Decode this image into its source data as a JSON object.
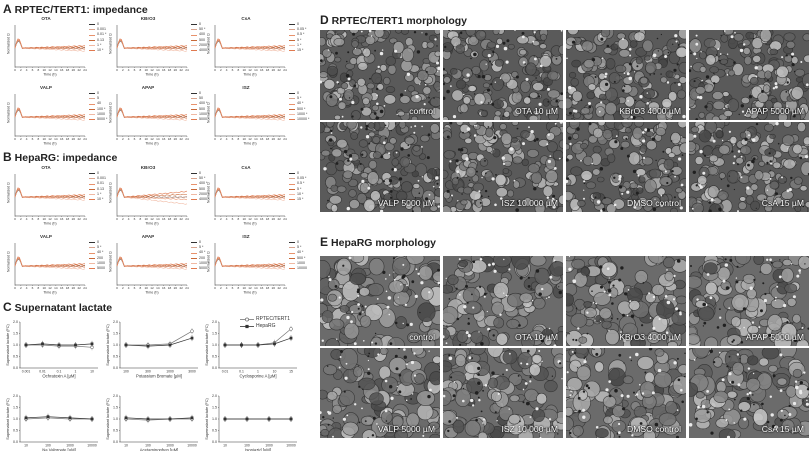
{
  "panels": {
    "a": {
      "letter": "A",
      "title": "RPTEC/TERT1: impedance"
    },
    "b": {
      "letter": "B",
      "title": "HepaRG: impedance"
    },
    "c": {
      "letter": "C",
      "title": "Supernatant lactate"
    },
    "d": {
      "letter": "D",
      "title": "RPTEC/TERT1 morphology"
    },
    "e": {
      "letter": "E",
      "title": "HepaRG morphology"
    }
  },
  "impedance_axes": {
    "ylabel": "Normalized Ω",
    "xlabel": "Time (h)",
    "xticks": [
      "0",
      "2",
      "4",
      "6",
      "8",
      "10",
      "12",
      "14",
      "16",
      "18",
      "20",
      "22",
      "24"
    ]
  },
  "impedance_rptec": [
    {
      "title": "OTA",
      "legend": [
        "0",
        "0.001",
        "0.01 *",
        "0.13",
        "1 *",
        "10 *"
      ]
    },
    {
      "title": "KBrO3",
      "legend": [
        "0",
        "50 *",
        "400",
        "500",
        "2000 *",
        "4000 *"
      ]
    },
    {
      "title": "CsA",
      "legend": [
        "0",
        "0.05 *",
        "0.5 *",
        "5 *",
        "1 *",
        "15 *"
      ]
    },
    {
      "title": "VALP",
      "legend": [
        "0",
        "5",
        "40",
        "100 *",
        "1000",
        "5000 *"
      ]
    },
    {
      "title": "APAP",
      "legend": [
        "0",
        "50",
        "400 *",
        "500",
        "1000 *",
        "5000 *"
      ]
    },
    {
      "title": "ISZ",
      "legend": [
        "0",
        "5 *",
        "40 *",
        "500 *",
        "1000 *",
        "10000 *"
      ]
    }
  ],
  "impedance_heparg": [
    {
      "title": "OTA",
      "legend": [
        "0",
        "0.001",
        "0.01",
        "0.13",
        "1 *",
        "10 *"
      ]
    },
    {
      "title": "KBrO3",
      "legend": [
        "0",
        "50 *",
        "400 *",
        "500",
        "2000 *",
        "4000 *"
      ]
    },
    {
      "title": "CsA",
      "legend": [
        "0",
        "0.05 *",
        "0.5 *",
        "5 *",
        "10 *",
        "15 *"
      ]
    },
    {
      "title": "VALP",
      "legend": [
        "0",
        "5 *",
        "40 *",
        "200",
        "1000",
        "5000"
      ]
    },
    {
      "title": "APAP",
      "legend": [
        "0",
        "5 *",
        "40 *",
        "200",
        "1000 *",
        "5000"
      ]
    },
    {
      "title": "ISZ",
      "legend": [
        "0",
        "5 *",
        "40 *",
        "500 *",
        "1000",
        "10000"
      ]
    }
  ],
  "lactate_legend": [
    "RPTEC/TERT1",
    "HepaRG"
  ],
  "lactate_ylabel": "Supernatant lactate (FC)",
  "lactate_yticks": [
    "0.0",
    "0.5",
    "1.0",
    "1.5",
    "2.0"
  ],
  "chart_data": [
    {
      "type": "line",
      "title": "",
      "xlabel": "Ochratoxin A [µM]",
      "ylabel": "Supernatant lactate (FC)",
      "x": [
        "0.001",
        "0.01",
        "0.1",
        "1",
        "10"
      ],
      "ylim": [
        0,
        2.0
      ],
      "series": [
        {
          "name": "RPTEC/TERT1",
          "values": [
            1.0,
            1.0,
            0.95,
            0.95,
            0.9
          ]
        },
        {
          "name": "HepaRG",
          "values": [
            1.0,
            1.05,
            1.0,
            1.0,
            1.05
          ]
        }
      ]
    },
    {
      "type": "line",
      "title": "",
      "xlabel": "Potassium Bromate [µM]",
      "ylabel": "Supernatant lactate (FC)",
      "x": [
        "100",
        "300",
        "1000",
        "3000"
      ],
      "ylim": [
        0,
        2.0
      ],
      "series": [
        {
          "name": "RPTEC/TERT1",
          "values": [
            1.0,
            1.0,
            1.05,
            1.6
          ]
        },
        {
          "name": "HepaRG",
          "values": [
            1.0,
            0.95,
            1.0,
            1.3
          ]
        }
      ]
    },
    {
      "type": "line",
      "title": "",
      "xlabel": "Cyclosporine A [µM]",
      "ylabel": "Supernatant lactate (FC)",
      "x": [
        "0.01",
        "0.1",
        "1",
        "10",
        "15"
      ],
      "ylim": [
        0,
        2.0
      ],
      "series": [
        {
          "name": "RPTEC/TERT1",
          "values": [
            1.0,
            1.0,
            1.0,
            1.1,
            1.7
          ]
        },
        {
          "name": "HepaRG",
          "values": [
            1.0,
            1.0,
            1.0,
            1.05,
            1.3
          ]
        }
      ]
    },
    {
      "type": "line",
      "title": "",
      "xlabel": "Na Valproate [µM]",
      "ylabel": "Supernatant lactate (FC)",
      "x": [
        "10",
        "100",
        "1000",
        "10000"
      ],
      "ylim": [
        0,
        2.0
      ],
      "series": [
        {
          "name": "RPTEC/TERT1",
          "values": [
            1.0,
            1.05,
            1.0,
            1.0
          ]
        },
        {
          "name": "HepaRG",
          "values": [
            1.05,
            1.1,
            1.05,
            1.0
          ]
        }
      ]
    },
    {
      "type": "line",
      "title": "",
      "xlabel": "Acetaminophen [µM]",
      "ylabel": "Supernatant lactate (FC)",
      "x": [
        "10",
        "100",
        "1000",
        "10000"
      ],
      "ylim": [
        0,
        2.0
      ],
      "series": [
        {
          "name": "RPTEC/TERT1",
          "values": [
            1.0,
            0.95,
            1.0,
            1.0
          ]
        },
        {
          "name": "HepaRG",
          "values": [
            1.05,
            1.0,
            1.0,
            1.05
          ]
        }
      ]
    },
    {
      "type": "line",
      "title": "",
      "xlabel": "Isoniazid [µM]",
      "ylabel": "Supernatant lactate (FC)",
      "x": [
        "10",
        "100",
        "1000",
        "10000"
      ],
      "ylim": [
        0,
        2.0
      ],
      "series": [
        {
          "name": "RPTEC/TERT1",
          "values": [
            1.0,
            1.0,
            1.0,
            1.0
          ]
        },
        {
          "name": "HepaRG",
          "values": [
            1.0,
            1.0,
            1.0,
            1.0
          ]
        }
      ]
    }
  ],
  "rptec_images": [
    "control",
    "OTA 10 µM",
    "KBrO3 4000 µM",
    "APAP 5000 µM",
    "VALP 5000 µM",
    "ISZ 10 000 µM",
    "DMSO control",
    "CsA 15 µM"
  ],
  "heparg_images": [
    "control",
    "OTA 10 µM",
    "KBrO3 4000 µM",
    "APAP 5000 µM",
    "VALP 5000 µM",
    "ISZ 10 000 µM",
    "DMSO control",
    "CsA 15 µM"
  ],
  "colors": {
    "dark_line": "#333333",
    "treatment_shades": [
      "#555555",
      "#d9a590",
      "#e8926c",
      "#c86a3a",
      "#f0b9a3",
      "#e07a50"
    ],
    "photo_dark": "#2a2a2a",
    "photo_light": "#c9c9c9"
  }
}
